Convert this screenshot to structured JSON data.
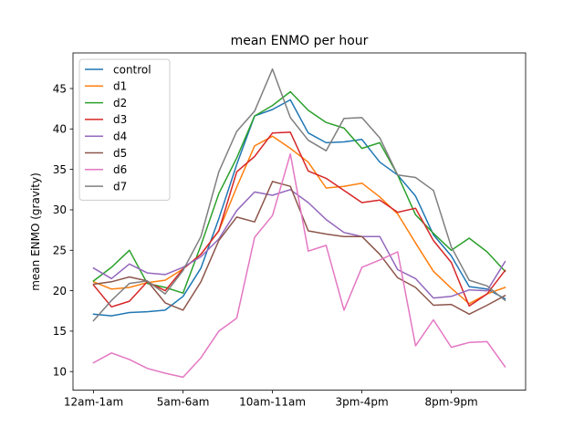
{
  "chart_data": {
    "type": "line",
    "title": "mean ENMO per hour",
    "xlabel": "",
    "ylabel": "mean ENMO (gravity)",
    "x": [
      0,
      1,
      2,
      3,
      4,
      5,
      6,
      7,
      8,
      9,
      10,
      11,
      12,
      13,
      14,
      15,
      16,
      17,
      18,
      19,
      20,
      21,
      22,
      23
    ],
    "xticks": [
      {
        "x": 0,
        "label": "12am-1am"
      },
      {
        "x": 5,
        "label": "5am-6am"
      },
      {
        "x": 10,
        "label": "10am-11am"
      },
      {
        "x": 15,
        "label": "3pm-4pm"
      },
      {
        "x": 20,
        "label": "8pm-9pm"
      }
    ],
    "yticks": [
      10,
      15,
      20,
      25,
      30,
      35,
      40,
      45
    ],
    "xlim": [
      -1.15,
      24.15
    ],
    "ylim": [
      7.7,
      49.4
    ],
    "grid": false,
    "legend_position": "top-left",
    "series": [
      {
        "name": "control",
        "color": "#1f77b4",
        "values": [
          17.1,
          16.9,
          17.3,
          17.4,
          17.6,
          19.3,
          22.8,
          28.9,
          35.6,
          41.6,
          42.4,
          43.6,
          39.5,
          38.3,
          38.4,
          38.7,
          35.9,
          34.3,
          31.7,
          26.9,
          24.3,
          20.5,
          20.2,
          19.0
        ]
      },
      {
        "name": "d1",
        "color": "#ff7f0e",
        "values": [
          21.1,
          20.2,
          20.4,
          21.0,
          21.3,
          22.7,
          24.5,
          27.4,
          32.8,
          37.9,
          39.1,
          37.6,
          35.9,
          32.7,
          32.9,
          33.3,
          31.6,
          29.5,
          25.9,
          22.4,
          20.3,
          18.4,
          19.6,
          20.4
        ]
      },
      {
        "name": "d2",
        "color": "#2ca02c",
        "values": [
          21.2,
          22.9,
          25.0,
          20.9,
          20.4,
          19.7,
          25.6,
          32.0,
          36.4,
          41.6,
          42.9,
          44.6,
          42.3,
          40.8,
          40.1,
          37.6,
          38.3,
          34.3,
          29.4,
          27.1,
          25.0,
          26.5,
          24.8,
          22.4
        ]
      },
      {
        "name": "d3",
        "color": "#d62728",
        "values": [
          20.7,
          18.0,
          18.7,
          21.1,
          20.0,
          22.7,
          24.5,
          27.4,
          34.7,
          36.6,
          39.5,
          39.6,
          34.8,
          33.9,
          32.4,
          30.9,
          31.2,
          29.7,
          30.2,
          26.2,
          23.5,
          18.1,
          19.6,
          22.5
        ]
      },
      {
        "name": "d4",
        "color": "#9467bd",
        "values": [
          22.8,
          21.5,
          23.3,
          22.2,
          22.0,
          22.9,
          24.2,
          26.4,
          29.9,
          32.2,
          31.8,
          32.5,
          30.9,
          28.8,
          27.2,
          26.7,
          26.7,
          22.6,
          21.5,
          19.1,
          19.3,
          20.1,
          20.0,
          23.6
        ]
      },
      {
        "name": "d5",
        "color": "#8c564b",
        "values": [
          20.8,
          21.1,
          21.7,
          21.2,
          18.5,
          17.6,
          21.1,
          26.2,
          29.1,
          28.5,
          33.5,
          32.9,
          27.4,
          27.0,
          26.7,
          26.7,
          24.5,
          21.6,
          20.4,
          18.2,
          18.3,
          17.1,
          18.2,
          19.4
        ]
      },
      {
        "name": "d6",
        "color": "#e377c2",
        "values": [
          11.1,
          12.3,
          11.5,
          10.4,
          9.8,
          9.3,
          11.7,
          15.0,
          16.6,
          26.6,
          29.3,
          36.9,
          24.9,
          25.6,
          17.6,
          22.9,
          23.8,
          24.8,
          13.2,
          16.4,
          13.0,
          13.6,
          13.7,
          10.6
        ]
      },
      {
        "name": "d7",
        "color": "#7f7f7f",
        "values": [
          16.3,
          18.8,
          20.9,
          21.2,
          19.6,
          22.5,
          26.7,
          34.7,
          39.7,
          42.2,
          47.4,
          41.4,
          38.6,
          37.3,
          41.3,
          41.4,
          38.9,
          34.3,
          34.0,
          32.4,
          25.4,
          21.3,
          20.6,
          18.8
        ]
      }
    ]
  }
}
